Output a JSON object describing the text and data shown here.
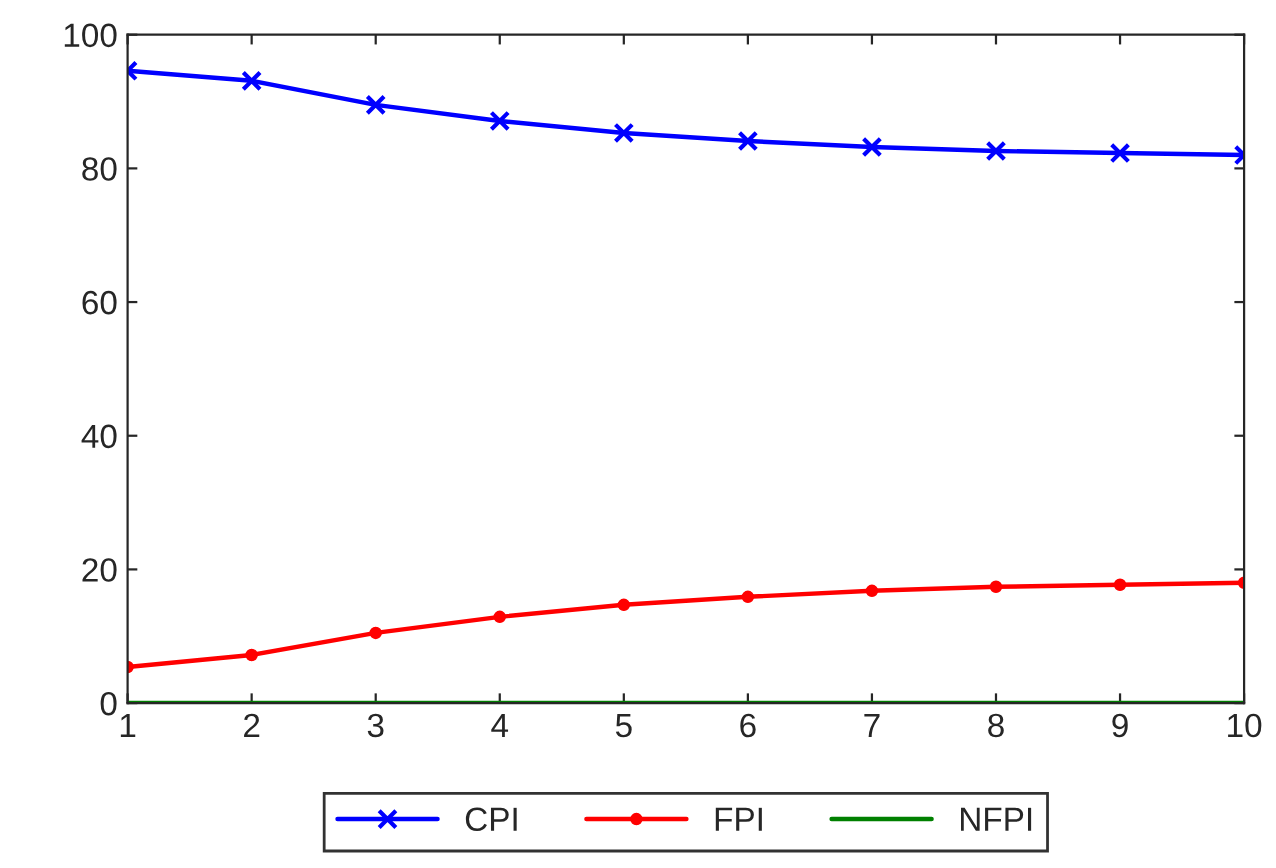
{
  "chart_data": {
    "type": "line",
    "x": [
      1,
      2,
      3,
      4,
      5,
      6,
      7,
      8,
      9,
      10
    ],
    "series": [
      {
        "name": "CPI",
        "color": "#0000ff",
        "marker": "cross",
        "values": [
          94.6,
          93.1,
          89.5,
          87.1,
          85.3,
          84.1,
          83.2,
          82.6,
          82.3,
          82.0
        ]
      },
      {
        "name": "FPI",
        "color": "#ff0000",
        "marker": "circle",
        "values": [
          5.4,
          7.2,
          10.5,
          12.9,
          14.7,
          15.9,
          16.8,
          17.4,
          17.7,
          18.0
        ]
      },
      {
        "name": "NFPI",
        "color": "#008000",
        "marker": "none",
        "values": [
          0,
          0,
          0,
          0,
          0,
          0,
          0,
          0,
          0,
          0
        ]
      }
    ],
    "xlim": [
      1,
      10
    ],
    "xticks": [
      1,
      2,
      3,
      4,
      5,
      6,
      7,
      8,
      9,
      10
    ],
    "ylim": [
      0,
      100
    ],
    "yticks": [
      0,
      20,
      40,
      60,
      80,
      100
    ],
    "grid": false,
    "legend": "bottom",
    "line_style": "solid"
  }
}
